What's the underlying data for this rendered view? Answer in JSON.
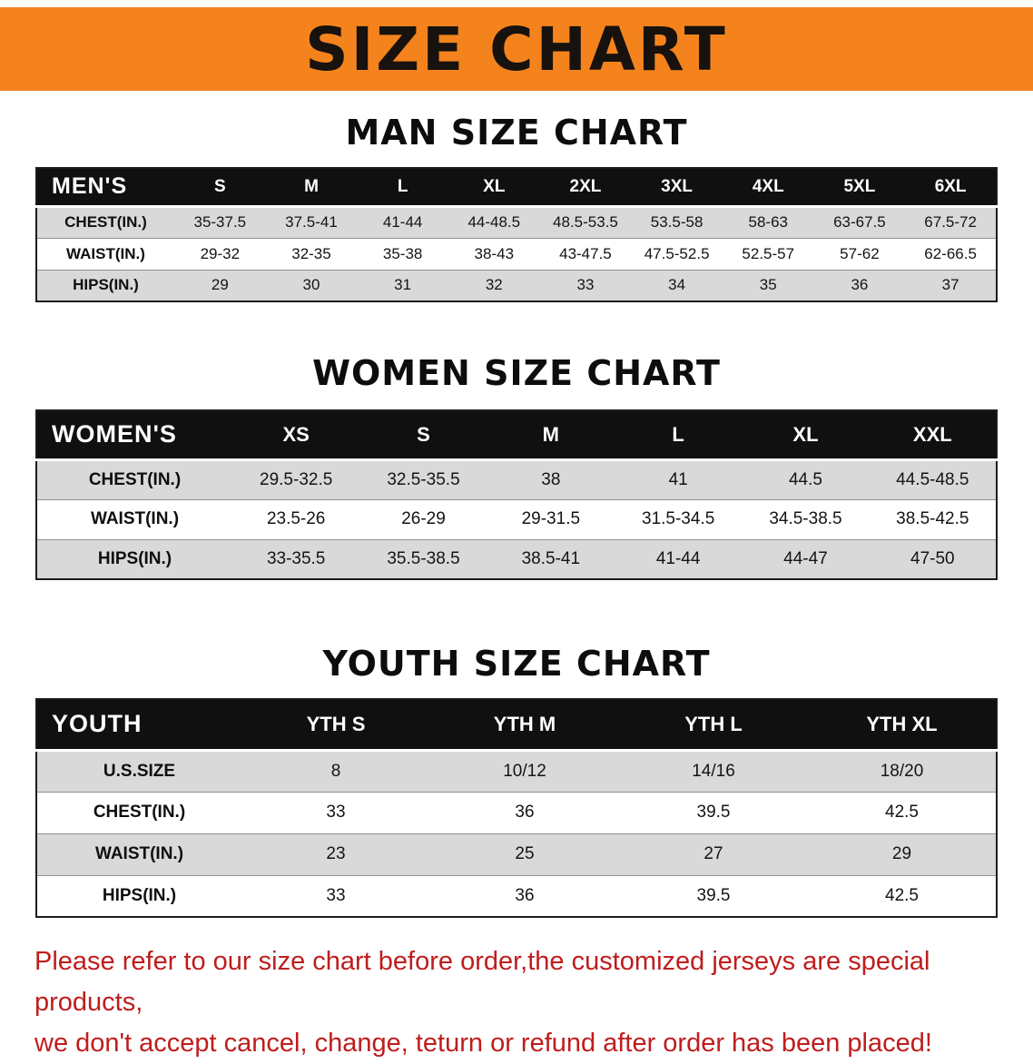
{
  "banner": {
    "title": "SIZE CHART"
  },
  "colors": {
    "banner_bg": "#f5831d",
    "header_bar": "#101010",
    "row_stripe": "#d9d9d9",
    "notice_text": "#bf1d1d"
  },
  "sections": [
    {
      "id": "men",
      "heading": "MAN SIZE CHART",
      "corner_label": "MEN'S",
      "columns": [
        "S",
        "M",
        "L",
        "XL",
        "2XL",
        "3XL",
        "4XL",
        "5XL",
        "6XL"
      ],
      "rows": [
        {
          "label": "CHEST(IN.)",
          "values": [
            "35-37.5",
            "37.5-41",
            "41-44",
            "44-48.5",
            "48.5-53.5",
            "53.5-58",
            "58-63",
            "63-67.5",
            "67.5-72"
          ]
        },
        {
          "label": "WAIST(IN.)",
          "values": [
            "29-32",
            "32-35",
            "35-38",
            "38-43",
            "43-47.5",
            "47.5-52.5",
            "52.5-57",
            "57-62",
            "62-66.5"
          ]
        },
        {
          "label": "HIPS(IN.)",
          "values": [
            "29",
            "30",
            "31",
            "32",
            "33",
            "34",
            "35",
            "36",
            "37"
          ]
        }
      ]
    },
    {
      "id": "women",
      "heading": "WOMEN SIZE CHART",
      "corner_label": "WOMEN'S",
      "columns": [
        "XS",
        "S",
        "M",
        "L",
        "XL",
        "XXL"
      ],
      "rows": [
        {
          "label": "CHEST(IN.)",
          "values": [
            "29.5-32.5",
            "32.5-35.5",
            "38",
            "41",
            "44.5",
            "44.5-48.5"
          ]
        },
        {
          "label": "WAIST(IN.)",
          "values": [
            "23.5-26",
            "26-29",
            "29-31.5",
            "31.5-34.5",
            "34.5-38.5",
            "38.5-42.5"
          ]
        },
        {
          "label": "HIPS(IN.)",
          "values": [
            "33-35.5",
            "35.5-38.5",
            "38.5-41",
            "41-44",
            "44-47",
            "47-50"
          ]
        }
      ]
    },
    {
      "id": "youth",
      "heading": "YOUTH SIZE CHART",
      "corner_label": "YOUTH",
      "columns": [
        "YTH S",
        "YTH M",
        "YTH L",
        "YTH XL"
      ],
      "rows": [
        {
          "label": "U.S.SIZE",
          "values": [
            "8",
            "10/12",
            "14/16",
            "18/20"
          ]
        },
        {
          "label": "CHEST(IN.)",
          "values": [
            "33",
            "36",
            "39.5",
            "42.5"
          ]
        },
        {
          "label": "WAIST(IN.)",
          "values": [
            "23",
            "25",
            "27",
            "29"
          ]
        },
        {
          "label": "HIPS(IN.)",
          "values": [
            "33",
            "36",
            "39.5",
            "42.5"
          ]
        }
      ]
    }
  ],
  "footer": {
    "lines": [
      "Please refer to our size chart before order,the customized jerseys are special products,",
      "we don't accept cancel, change, teturn or refund after order has been placed!"
    ]
  }
}
